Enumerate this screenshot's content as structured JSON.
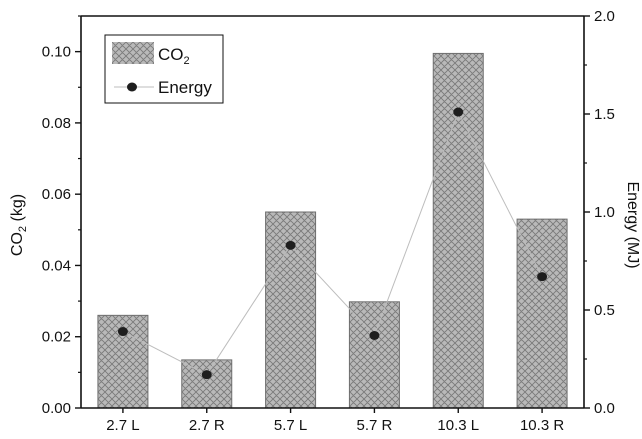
{
  "chart_data": {
    "type": "bar",
    "categories": [
      "2.7 L",
      "2.7 R",
      "5.7 L",
      "5.7 R",
      "10.3 L",
      "10.3 R"
    ],
    "series": [
      {
        "name": "CO2",
        "kind": "bar",
        "axis": "left",
        "values": [
          0.026,
          0.0135,
          0.055,
          0.0298,
          0.0995,
          0.053
        ]
      },
      {
        "name": "Energy",
        "kind": "line-with-points",
        "axis": "right",
        "values": [
          0.39,
          0.17,
          0.83,
          0.37,
          1.51,
          0.67
        ]
      }
    ],
    "left_axis": {
      "label_main": "CO",
      "label_sub": "2",
      "label_unit": " (kg)",
      "range": [
        0,
        0.11
      ],
      "ticks": [
        0.0,
        0.02,
        0.04,
        0.06,
        0.08,
        0.1
      ],
      "tick_labels": [
        "0.00",
        "0.02",
        "0.04",
        "0.06",
        "0.08",
        "0.10"
      ]
    },
    "right_axis": {
      "label": "Energy (MJ)",
      "range": [
        0,
        2.0
      ],
      "ticks": [
        0.0,
        0.5,
        1.0,
        1.5,
        2.0
      ],
      "tick_labels": [
        "0.0",
        "0.5",
        "1.0",
        "1.5",
        "2.0"
      ]
    },
    "legend": {
      "placement": "top-left",
      "entries": [
        {
          "main": "CO",
          "sub": "2"
        },
        {
          "main": "Energy",
          "sub": ""
        }
      ]
    },
    "grid": false,
    "colors": {
      "bar_fill": "#b9b9b9",
      "bar_hatch": "#7a7a7a",
      "bar_border": "#6e6e6e",
      "line": "#bdbdbd",
      "marker": "#1e1e1e",
      "axis": "#111111"
    }
  }
}
